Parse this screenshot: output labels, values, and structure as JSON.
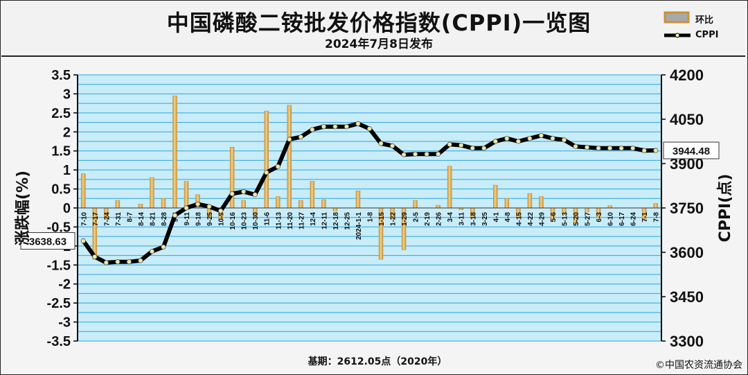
{
  "header": {
    "title": "中国磷酸二铵批发价格指数(CPPI)一览图",
    "subtitle": "2024年7月8日发布"
  },
  "legend": {
    "bar_label": "环比",
    "line_label": "CPPI"
  },
  "footer": {
    "base_note": "基期：2612.05点（2020年）",
    "copyright": "©中国农资流通协会"
  },
  "colors": {
    "plot_bg": "#c8ecf8",
    "grid": "#2aa6dc",
    "bar_light": "#f2d28a",
    "bar_dark": "#c8923a",
    "line": "#000000",
    "marker": "#f0e8a8"
  },
  "chart_data": {
    "type": "bar+line",
    "categories": [
      "7-10",
      "7-17",
      "7-24",
      "7-31",
      "8-7",
      "8-14",
      "8-21",
      "8-28",
      "9-4",
      "9-11",
      "9-18",
      "9-25",
      "10-9",
      "10-16",
      "10-23",
      "10-30",
      "11-6",
      "11-13",
      "11-20",
      "11-27",
      "12-4",
      "12-11",
      "12-18",
      "12-25",
      "2024-1-1",
      "1-8",
      "1-15",
      "1-22",
      "1-29",
      "2-5",
      "2-19",
      "2-26",
      "3-4",
      "3-11",
      "3-18",
      "3-25",
      "4-1",
      "4-8",
      "4-15",
      "4-22",
      "4-29",
      "5-6",
      "5-13",
      "5-20",
      "5-27",
      "6-3",
      "6-10",
      "6-17",
      "6-24",
      "7-1",
      "7-8"
    ],
    "series": [
      {
        "name": "环比",
        "type": "bar",
        "axis": "left",
        "values": [
          0.9,
          -1.35,
          -0.3,
          0.2,
          0.0,
          0.1,
          0.8,
          0.25,
          2.95,
          0.7,
          0.35,
          -0.25,
          -0.3,
          1.6,
          0.2,
          -0.2,
          2.55,
          0.3,
          2.7,
          0.2,
          0.7,
          0.22,
          -0.08,
          0.0,
          0.45,
          0.0,
          -1.35,
          -0.3,
          -1.1,
          0.2,
          0.0,
          0.07,
          1.1,
          -0.05,
          -0.25,
          0.0,
          0.6,
          0.25,
          -0.25,
          0.38,
          0.3,
          -0.3,
          -0.15,
          -0.4,
          -0.1,
          -0.25,
          0.06,
          0.0,
          0.0,
          -0.3,
          0.12
        ]
      },
      {
        "name": "CPPI",
        "type": "line",
        "axis": "right",
        "values": [
          3638.63,
          3585,
          3565,
          3568,
          3568,
          3572,
          3603,
          3618,
          3725,
          3750,
          3763,
          3755,
          3740,
          3798,
          3805,
          3795,
          3870,
          3890,
          3982,
          3990,
          4015,
          4025,
          4025,
          4025,
          4035,
          4018,
          3968,
          3960,
          3930,
          3932,
          3932,
          3932,
          3965,
          3962,
          3952,
          3952,
          3975,
          3985,
          3975,
          3985,
          3995,
          3985,
          3980,
          3958,
          3955,
          3952,
          3952,
          3952,
          3952,
          3944,
          3944.48
        ]
      }
    ],
    "annotations": [
      {
        "text": "3638.63",
        "series": "CPPI",
        "point": "first"
      },
      {
        "text": "3944.48",
        "series": "CPPI",
        "point": "last"
      }
    ],
    "ylabel_left": "涨跌幅(%)",
    "ylabel_right": "CPPI(点)",
    "ylim_left": [
      -3.5,
      3.5
    ],
    "ylim_right": [
      3300,
      4200
    ],
    "yticks_left": [
      "3.5",
      "3",
      "2.5",
      "2",
      "1.5",
      "1",
      "0.5",
      "0",
      "-0.5",
      "-1",
      "-1.5",
      "-2",
      "-2.5",
      "-3",
      "-3.5"
    ],
    "yticks_right": [
      "4200",
      "4050",
      "3900",
      "3750",
      "3600",
      "3450",
      "3300"
    ],
    "grid": true,
    "legend_position": "top-right"
  }
}
